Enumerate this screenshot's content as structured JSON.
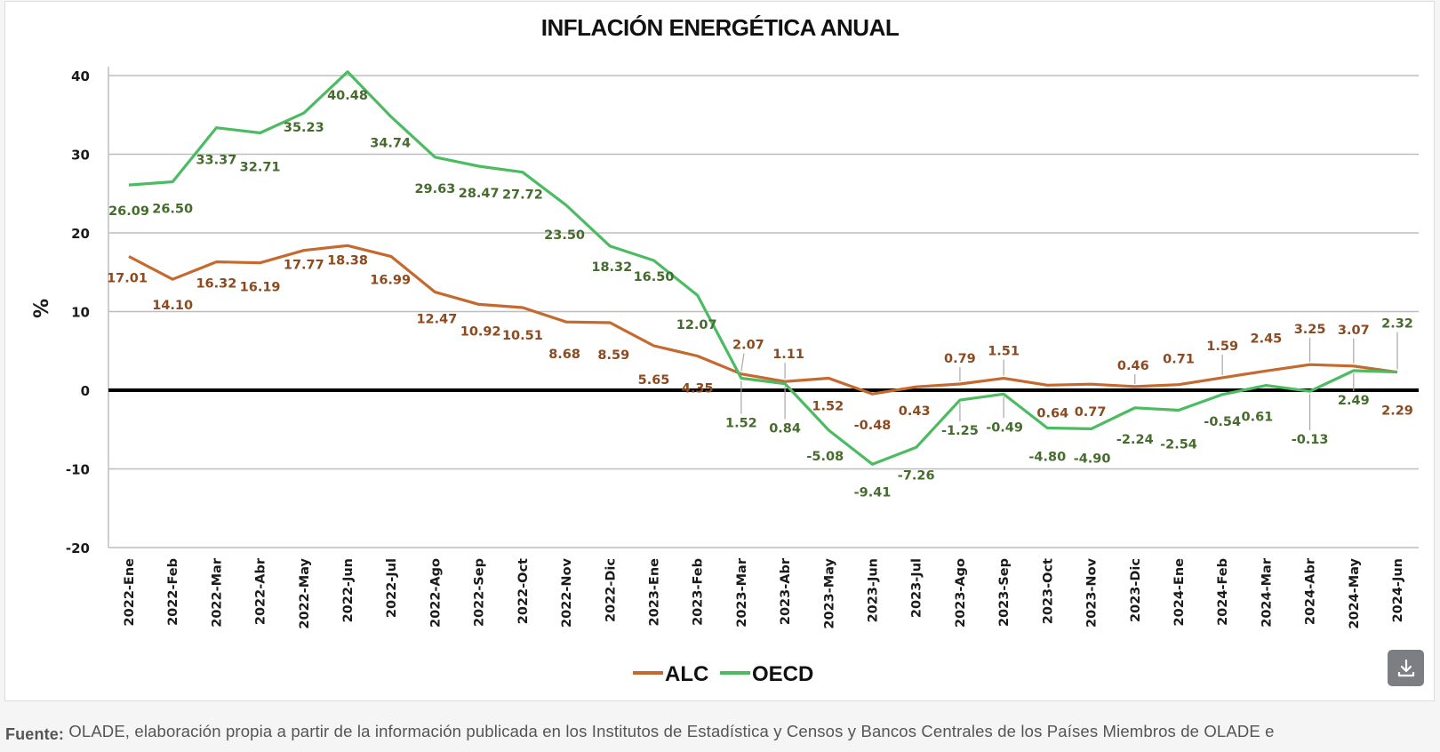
{
  "page": {
    "download_button_label": "download",
    "footer": {
      "label": "Fuente:",
      "text": " OLADE, elaboración propia a partir de la información publicada en los Institutos de Estadística y Censos y Bancos Centrales de los Países Miembros de OLADE e"
    }
  },
  "colors": {
    "alc_line": "#c5692f",
    "alc_label": "#8b4a1f",
    "oecd_line": "#4cbb62",
    "oecd_label": "#456b2d",
    "zero_line": "#000000",
    "grid": "#bdbdbd"
  },
  "chart_data": {
    "type": "line",
    "title": "INFLACIÓN ENERGÉTICA ANUAL",
    "xlabel": "",
    "ylabel": "%",
    "ylim": [
      -20,
      40
    ],
    "yticks": [
      40,
      30,
      20,
      10,
      0,
      -10,
      -20
    ],
    "ytick_labels": [
      "40",
      "30",
      "20",
      "10",
      "0",
      "-10",
      "-20"
    ],
    "grid": true,
    "legend": "bottom-center",
    "categories": [
      "2022-Ene",
      "2022-Feb",
      "2022-Mar",
      "2022-Abr",
      "2022-May",
      "2022-Jun",
      "2022-Jul",
      "2022-Ago",
      "2022-Sep",
      "2022-Oct",
      "2022-Nov",
      "2022-Dic",
      "2023-Ene",
      "2023-Feb",
      "2023-Mar",
      "2023-Abr",
      "2023-May",
      "2023-Jun",
      "2023-Jul",
      "2023-Ago",
      "2023-Sep",
      "2023-Oct",
      "2023-Nov",
      "2023-Dic",
      "2024-Ene",
      "2024-Feb",
      "2024-Mar",
      "2024-Abr",
      "2024-May",
      "2024-Jun"
    ],
    "series": [
      {
        "name": "ALC",
        "values": [
          17.01,
          14.1,
          16.32,
          16.19,
          17.77,
          18.38,
          16.99,
          12.47,
          10.92,
          10.51,
          8.68,
          8.59,
          5.65,
          4.35,
          2.07,
          1.11,
          1.52,
          -0.48,
          0.43,
          0.79,
          1.51,
          0.64,
          0.77,
          0.46,
          0.71,
          1.59,
          2.45,
          3.25,
          3.07,
          2.29
        ],
        "labels": [
          "17.01",
          "14.10",
          "16.32",
          "16.19",
          "17.77",
          "18.38",
          "16.99",
          "12.47",
          "10.92",
          "10.51",
          "8.68",
          "8.59",
          "5.65",
          "4.35",
          "2.07",
          "1.11",
          "1.52",
          "-0.48",
          "0.43",
          "0.79",
          "1.51",
          "0.64",
          "0.77",
          "0.46",
          "0.71",
          "1.59",
          "2.45",
          "3.25",
          "3.07",
          "2.29"
        ]
      },
      {
        "name": "OECD",
        "values": [
          26.09,
          26.5,
          33.37,
          32.71,
          35.23,
          40.48,
          34.74,
          29.63,
          28.47,
          27.72,
          23.5,
          18.32,
          16.5,
          12.07,
          1.52,
          0.84,
          -5.08,
          -9.41,
          -7.26,
          -1.25,
          -0.49,
          -4.8,
          -4.9,
          -2.24,
          -2.54,
          -0.54,
          0.61,
          -0.13,
          2.49,
          2.32
        ],
        "labels": [
          "26.09",
          "26.50",
          "33.37",
          "32.71",
          "35.23",
          "40.48",
          "34.74",
          "29.63",
          "28.47",
          "27.72",
          "23.50",
          "18.32",
          "16.50",
          "12.07",
          "1.52",
          "0.84",
          "-5.08",
          "-9.41",
          "-7.26",
          "-1.25",
          "-0.49",
          "-4.80",
          "-4.90",
          "-2.24",
          "-2.54",
          "-0.54",
          "0.61",
          "-0.13",
          "2.49",
          "2.32"
        ]
      }
    ]
  }
}
